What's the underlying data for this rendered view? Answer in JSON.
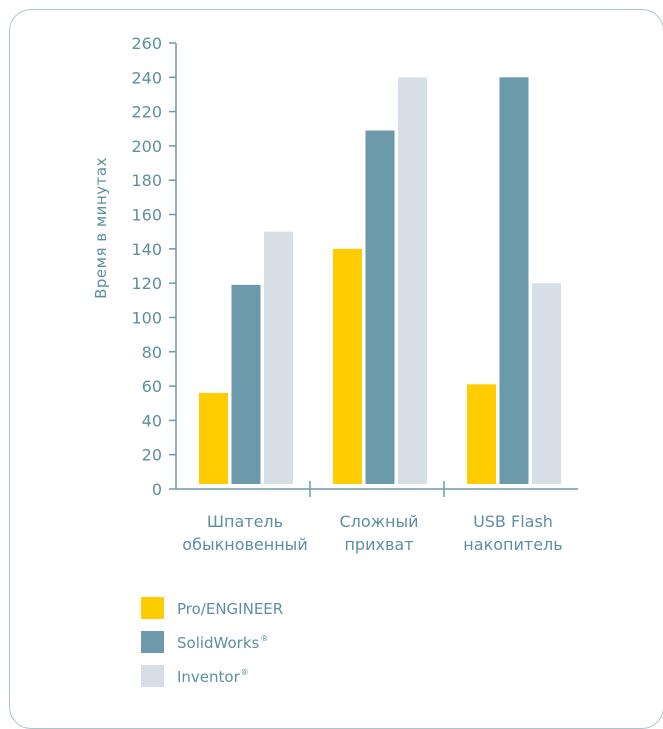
{
  "chart_data": {
    "type": "bar",
    "ylabel": "Время в минутах",
    "ylim": [
      0,
      260
    ],
    "yticks": [
      0,
      20,
      40,
      60,
      80,
      100,
      120,
      140,
      160,
      180,
      200,
      220,
      240,
      260
    ],
    "categories": [
      [
        "Шпатель",
        "обыкновенный"
      ],
      [
        "Сложный",
        "прихват"
      ],
      [
        "USB Flash",
        "накопитель"
      ]
    ],
    "series": [
      {
        "name": "Pro/ENGINEER",
        "mark": "",
        "color": "#ffcc00",
        "values": [
          56,
          140,
          61
        ]
      },
      {
        "name": "SolidWorks",
        "mark": "®",
        "color": "#6c9aaa",
        "values": [
          119,
          209,
          240
        ]
      },
      {
        "name": "Inventor",
        "mark": "®",
        "color": "#d7dfe6",
        "values": [
          150,
          240,
          120
        ]
      }
    ],
    "colors": {
      "axis": "#6c9aaa",
      "text": "#5e8fa0",
      "frame": "#a9c6cc"
    }
  }
}
